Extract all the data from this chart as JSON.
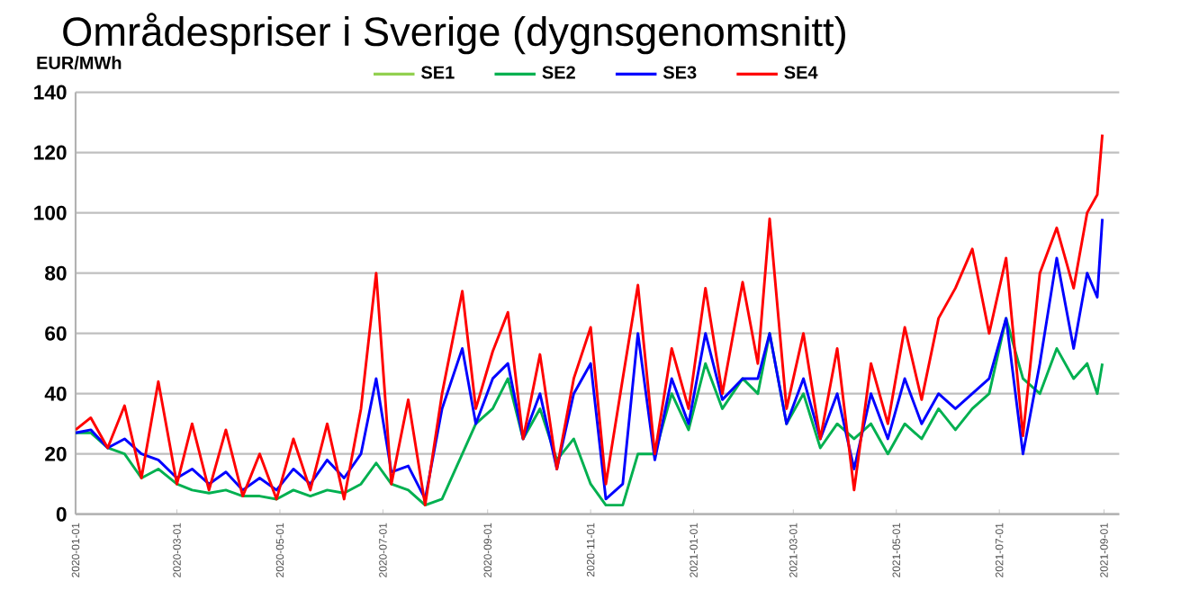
{
  "chart_data": {
    "type": "line",
    "title": "Områdespriser i Sverige (dygnsgenomsnitt)",
    "ylabel": "EUR/MWh",
    "x": [
      "2020-01-01",
      "2020-01-10",
      "2020-01-20",
      "2020-01-30",
      "2020-02-09",
      "2020-02-19",
      "2020-03-01",
      "2020-03-10",
      "2020-03-20",
      "2020-03-30",
      "2020-04-09",
      "2020-04-19",
      "2020-04-29",
      "2020-05-09",
      "2020-05-19",
      "2020-05-29",
      "2020-06-08",
      "2020-06-18",
      "2020-06-27",
      "2020-07-06",
      "2020-07-16",
      "2020-07-26",
      "2020-08-05",
      "2020-08-17",
      "2020-08-25",
      "2020-09-04",
      "2020-09-13",
      "2020-09-22",
      "2020-10-02",
      "2020-10-12",
      "2020-10-22",
      "2020-11-01",
      "2020-11-10",
      "2020-11-20",
      "2020-11-29",
      "2020-12-09",
      "2020-12-19",
      "2020-12-29",
      "2021-01-08",
      "2021-01-18",
      "2021-01-30",
      "2021-02-08",
      "2021-02-15",
      "2021-02-25",
      "2021-03-07",
      "2021-03-17",
      "2021-03-27",
      "2021-04-06",
      "2021-04-16",
      "2021-04-26",
      "2021-05-06",
      "2021-05-16",
      "2021-05-26",
      "2021-06-05",
      "2021-06-15",
      "2021-06-25",
      "2021-07-05",
      "2021-07-15",
      "2021-07-25",
      "2021-08-04",
      "2021-08-14",
      "2021-08-22",
      "2021-08-28",
      "2021-08-31"
    ],
    "series": [
      {
        "name": "SE1",
        "color": "#92d050",
        "values": [
          null,
          null,
          null,
          null,
          null,
          null,
          null,
          null,
          null,
          null,
          null,
          null,
          null,
          null,
          null,
          null,
          null,
          null,
          null,
          null,
          null,
          null,
          null,
          null,
          null,
          null,
          null,
          null,
          null,
          null,
          null,
          null,
          null,
          null,
          null,
          null,
          null,
          null,
          null,
          null,
          null,
          null,
          null,
          null,
          null,
          null,
          null,
          null,
          null,
          null,
          null,
          null,
          null,
          null,
          null,
          null,
          null,
          null,
          null,
          null,
          null,
          null,
          null,
          null
        ]
      },
      {
        "name": "SE2",
        "color": "#00b050",
        "values": [
          27,
          27,
          22,
          20,
          12,
          15,
          10,
          8,
          7,
          8,
          6,
          6,
          5,
          8,
          6,
          8,
          7,
          10,
          17,
          10,
          8,
          3,
          5,
          20,
          30,
          35,
          45,
          25,
          35,
          18,
          25,
          10,
          3,
          3,
          20,
          20,
          40,
          28,
          50,
          35,
          45,
          40,
          60,
          30,
          40,
          22,
          30,
          25,
          30,
          20,
          30,
          25,
          35,
          28,
          35,
          40,
          65,
          45,
          40,
          55,
          45,
          50,
          40,
          50
        ]
      },
      {
        "name": "SE3",
        "color": "#0000ff",
        "values": [
          27,
          28,
          22,
          25,
          20,
          18,
          12,
          15,
          10,
          14,
          8,
          12,
          8,
          15,
          10,
          18,
          12,
          20,
          45,
          14,
          16,
          5,
          35,
          55,
          30,
          45,
          50,
          25,
          40,
          15,
          40,
          50,
          5,
          10,
          60,
          18,
          45,
          30,
          60,
          38,
          45,
          45,
          60,
          30,
          45,
          25,
          40,
          15,
          40,
          25,
          45,
          30,
          40,
          35,
          40,
          45,
          65,
          20,
          50,
          85,
          55,
          80,
          72,
          98
        ]
      },
      {
        "name": "SE4",
        "color": "#ff0000",
        "values": [
          28,
          32,
          22,
          36,
          12,
          44,
          10,
          30,
          8,
          28,
          6,
          20,
          5,
          25,
          8,
          30,
          5,
          35,
          80,
          10,
          38,
          3,
          40,
          74,
          35,
          54,
          67,
          25,
          53,
          15,
          45,
          62,
          10,
          45,
          76,
          20,
          55,
          35,
          75,
          40,
          77,
          50,
          98,
          35,
          60,
          25,
          55,
          8,
          50,
          30,
          62,
          38,
          65,
          75,
          88,
          60,
          85,
          26,
          80,
          95,
          75,
          100,
          106,
          126
        ]
      }
    ],
    "xlim": [
      "2020-01-01",
      "2021-09-10"
    ],
    "xticks": [
      "2020-01-01",
      "2020-03-01",
      "2020-05-01",
      "2020-07-01",
      "2020-09-01",
      "2020-11-01",
      "2021-01-01",
      "2021-03-01",
      "2021-05-01",
      "2021-07-01",
      "2021-09-01"
    ],
    "ylim": [
      0,
      140
    ],
    "yticks": [
      0,
      20,
      40,
      60,
      80,
      100,
      120,
      140
    ],
    "grid": "y",
    "legend": "top",
    "marker": "none"
  }
}
